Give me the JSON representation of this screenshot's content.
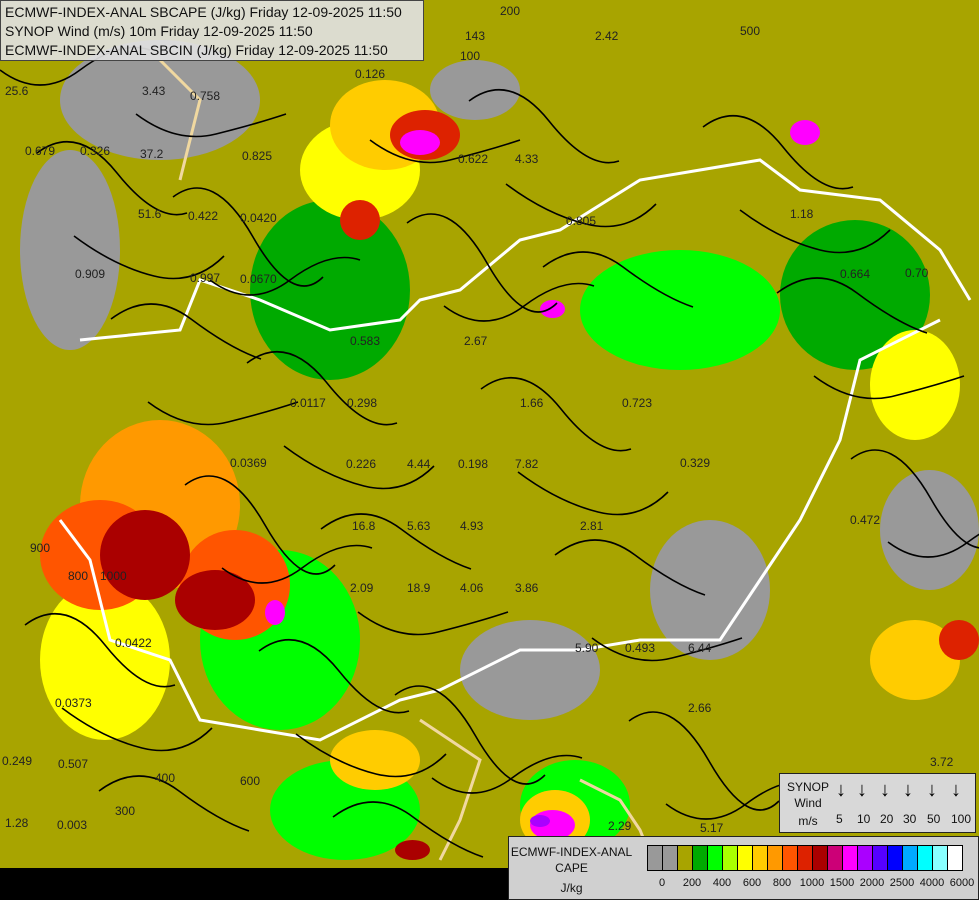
{
  "title_box": {
    "lines": [
      "ECMWF-INDEX-ANAL SBCAPE (J/kg) Friday 12-09-2025 11:50",
      "SYNOP Wind (m/s) 10m Friday 12-09-2025 11:50",
      "ECMWF-INDEX-ANAL SBCIN (J/kg) Friday 12-09-2025 11:50"
    ]
  },
  "wind_legend": {
    "title": [
      "SYNOP",
      "Wind",
      "m/s"
    ],
    "speeds": [
      "5",
      "10",
      "20",
      "30",
      "50",
      "100"
    ],
    "arrow_icon": "arrow-down-icon"
  },
  "cape_legend": {
    "title": [
      "ECMWF-INDEX-ANAL",
      "CAPE",
      "J/kg"
    ],
    "colors": [
      "#999999",
      "#999999",
      "#a8a400",
      "#00aa00",
      "#00ff00",
      "#aaff00",
      "#ffff00",
      "#ffcc00",
      "#ff9900",
      "#ff5500",
      "#dd2200",
      "#aa0000",
      "#cc0077",
      "#ff00ff",
      "#aa00ff",
      "#5500ff",
      "#0000ff",
      "#00aaff",
      "#00ffff",
      "#88ffff",
      "#ffffff"
    ],
    "ticks": [
      "0",
      "200",
      "400",
      "600",
      "800",
      "1000",
      "1500",
      "2000",
      "2500",
      "4000",
      "6000"
    ]
  },
  "map_labels": [
    "25.6",
    "3.43",
    "0.758",
    "0.679",
    "0.326",
    "37.2",
    "0.825",
    "51.6",
    "0.422",
    "0.909",
    "0.997",
    "0.0670",
    "0.0420",
    "143",
    "2.42",
    "0.622",
    "4.33",
    "0.805",
    "1.18",
    "0.664",
    "0.70",
    "0.583",
    "2.67",
    "0.0117",
    "0.298",
    "1.66",
    "0.723",
    "0.0369",
    "0.226",
    "4.44",
    "0.198",
    "7.82",
    "0.329",
    "16.8",
    "5.63",
    "4.93",
    "2.81",
    "0.472",
    "2.09",
    "18.9",
    "4.06",
    "3.86",
    "0.0422",
    "0.0373",
    "5.90",
    "0.493",
    "6.44",
    "2.66",
    "0.249",
    "0.507",
    "1.28",
    "0.003",
    "2.29",
    "5.17",
    "3.72",
    "0.126",
    "200",
    "100",
    "500",
    "600",
    "900",
    "800",
    "1000",
    "400",
    "300"
  ],
  "colors": {
    "background": "#a8a400",
    "border": "#ffffff",
    "streamline": "#000000"
  }
}
